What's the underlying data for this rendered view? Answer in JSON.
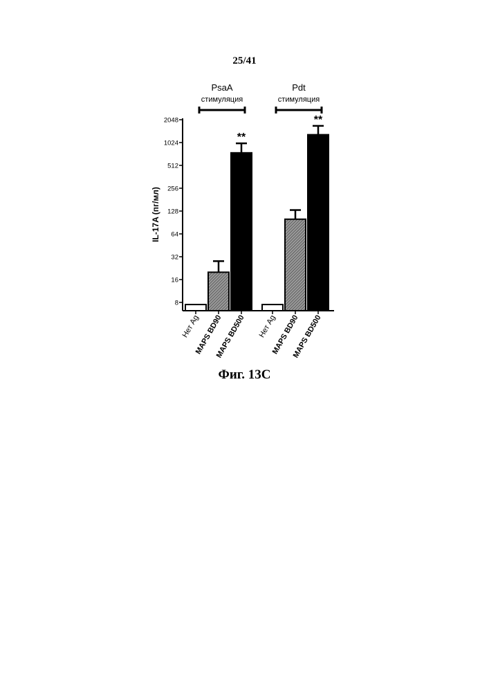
{
  "page": {
    "number": "25/41",
    "figure_caption": "Фиг. 13С"
  },
  "chart_data": {
    "type": "bar",
    "ylabel": "IL-17A (пг/мл)",
    "yscale": "log2",
    "ylim": [
      6,
      2048
    ],
    "yticks": [
      8,
      16,
      32,
      64,
      128,
      256,
      512,
      1024,
      2048
    ],
    "ytick_labels": [
      "8",
      "16",
      "32",
      "64",
      "128",
      "256",
      "512",
      "1024",
      "2048"
    ],
    "groups": [
      {
        "label": "PsaA",
        "sublabel": "стимуляция",
        "categories": [
          "Нет Ag",
          "MAPS BD90",
          "MAPS BD500"
        ],
        "values": [
          7.5,
          20,
          750
        ],
        "errors_upper": [
          7.5,
          28,
          1000
        ],
        "fills": [
          "white",
          "hatched",
          "black"
        ],
        "significance": [
          "",
          "",
          "**"
        ]
      },
      {
        "label": "Pdt",
        "sublabel": "стимуляция",
        "categories": [
          "Нет Ag",
          "MAPS BD90",
          "MAPS BD500"
        ],
        "values": [
          7.5,
          100,
          1300
        ],
        "errors_upper": [
          7.5,
          132,
          1700
        ],
        "fills": [
          "white",
          "hatched",
          "black"
        ],
        "significance": [
          "",
          "",
          "**"
        ]
      }
    ],
    "grid": false,
    "legend": "none"
  }
}
